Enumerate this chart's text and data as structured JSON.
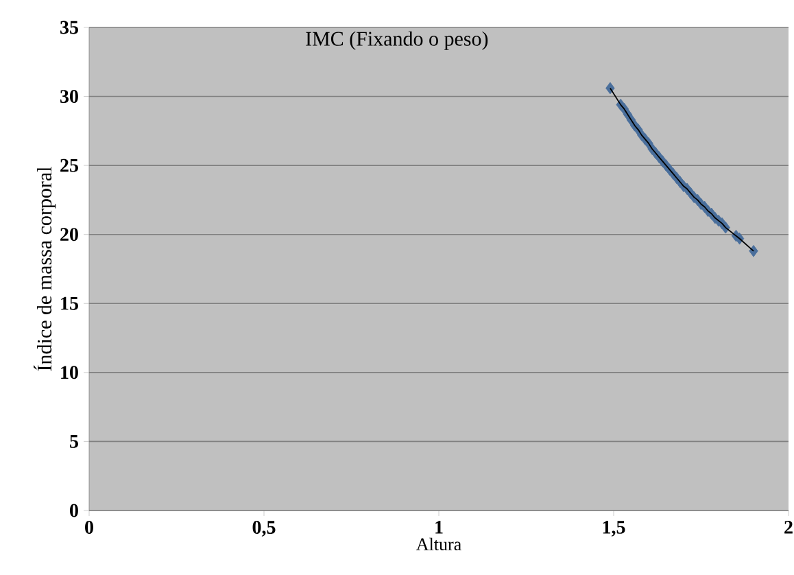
{
  "chart_data": {
    "type": "scatter",
    "title": "IMC (Fixando  o peso)",
    "xlabel": "Altura",
    "ylabel": "Índice de  massa corporal",
    "xlim": [
      0,
      2
    ],
    "xticks": [
      0,
      {
        "value": 0.5,
        "label": "0,5"
      },
      1,
      {
        "value": 1.5,
        "label": "1,5"
      },
      2
    ],
    "ylim": [
      0,
      35
    ],
    "yticks": [
      0,
      5,
      10,
      15,
      20,
      25,
      30,
      35
    ],
    "grid": "y",
    "series": [
      {
        "type": "scatter",
        "marker": "diamond",
        "color": "#4a6f9c",
        "x": [
          1.49,
          1.52,
          1.53,
          1.54,
          1.55,
          1.56,
          1.57,
          1.58,
          1.59,
          1.6,
          1.61,
          1.62,
          1.63,
          1.64,
          1.65,
          1.66,
          1.67,
          1.68,
          1.69,
          1.7,
          1.71,
          1.72,
          1.73,
          1.74,
          1.75,
          1.76,
          1.77,
          1.78,
          1.79,
          1.8,
          1.81,
          1.82,
          1.85,
          1.86,
          1.9
        ],
        "values": [
          30.6,
          29.4,
          29.1,
          28.7,
          28.3,
          27.9,
          27.6,
          27.2,
          26.9,
          26.6,
          26.2,
          25.9,
          25.6,
          25.3,
          25.0,
          24.7,
          24.4,
          24.1,
          23.8,
          23.5,
          23.3,
          23.0,
          22.7,
          22.5,
          22.2,
          22.0,
          21.7,
          21.5,
          21.2,
          21.0,
          20.8,
          20.5,
          19.9,
          19.7,
          18.8
        ]
      },
      {
        "type": "line",
        "marker": "none",
        "line_style": "solid",
        "color": "#000000",
        "x": [
          1.49,
          1.52,
          1.53,
          1.54,
          1.55,
          1.56,
          1.57,
          1.58,
          1.59,
          1.6,
          1.61,
          1.62,
          1.63,
          1.64,
          1.65,
          1.66,
          1.67,
          1.68,
          1.69,
          1.7,
          1.71,
          1.72,
          1.73,
          1.74,
          1.75,
          1.76,
          1.77,
          1.78,
          1.79,
          1.8,
          1.81,
          1.82,
          1.85,
          1.86,
          1.9
        ],
        "values": [
          30.6,
          29.4,
          29.1,
          28.7,
          28.3,
          27.9,
          27.6,
          27.2,
          26.9,
          26.6,
          26.2,
          25.9,
          25.6,
          25.3,
          25.0,
          24.7,
          24.4,
          24.1,
          23.8,
          23.5,
          23.3,
          23.0,
          22.7,
          22.5,
          22.2,
          22.0,
          21.7,
          21.5,
          21.2,
          21.0,
          20.8,
          20.5,
          19.9,
          19.7,
          18.8
        ]
      }
    ]
  }
}
